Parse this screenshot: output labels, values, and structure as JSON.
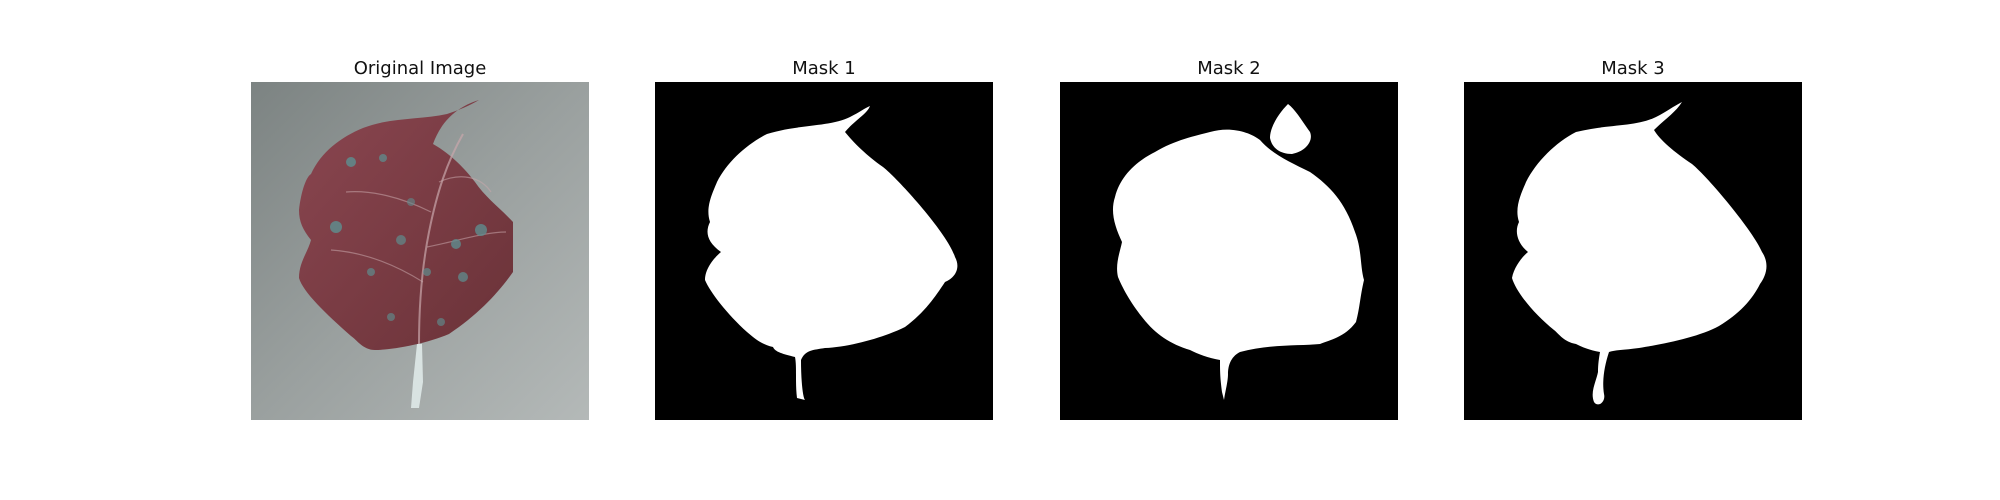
{
  "figure": {
    "panels": [
      {
        "title": "Original Image",
        "kind": "photo"
      },
      {
        "title": "Mask 1",
        "kind": "mask"
      },
      {
        "title": "Mask 2",
        "kind": "mask"
      },
      {
        "title": "Mask 3",
        "kind": "mask"
      }
    ],
    "colors": {
      "mask_background": "#000000",
      "mask_foreground": "#ffffff",
      "leaf": "#7a3c44",
      "leaf_spots": "#5f8c8d",
      "photo_background": "#8f9594"
    }
  }
}
